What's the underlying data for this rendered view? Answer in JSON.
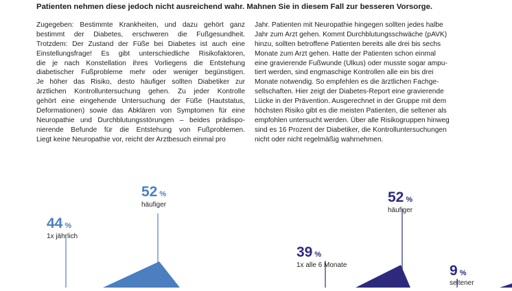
{
  "lead": "Patienten nehmen diese jedoch nicht ausreichend wahr. Mahnen Sie in diesem Fall zur besseren Vorsorge.",
  "left_column": [
    "Zugegeben: Bestimmte Krankheiten, und dazu gehört ganz",
    "bestimmt der Diabetes, erschweren die Fußgesundheit.",
    "Trotzdem: Der Zustand der Füße bei Diabetes ist auch eine",
    "Einstellungsfrage! Es gibt unterschiedliche Risikofaktoren,",
    "die je nach Konstellation ihres Vorliegens die Entstehung",
    "diabetischer Fußprobleme mehr oder weniger begünstigen.",
    "Je höher das Risiko, desto häufiger sollten Diabetiker zur",
    "ärztlichen Kontrolluntersuchung gehen. Zu jeder Kontrolle",
    "gehört eine eingehende Untersuchung der Füße (Hautstatus,",
    "Deformationen) sowie das Abklären von Symptomen für eine",
    "Neuropathie und Durchblutungsstörungen – beides prädispo-",
    "nierende Befunde für die Entstehung von Fußproblemen.",
    "Liegt keine Neuropathie vor, reicht der Arztbesuch einmal pro"
  ],
  "right_column": [
    "Jahr. Patienten mit Neuropathie hingegen sollten jedes halbe",
    "Jahr zum Arzt gehen. Kommt Durchblutungsschwäche (pAVK)",
    "hinzu, sollten betroffene Patienten bereits alle drei bis sechs",
    "Monate zum Arzt gehen. Hatte der Patienten schon einmal",
    "eine gravierende Fußwunde (Ulkus) oder musste sogar ampu-",
    "tiert werden, sind engmaschige Kontrollen alle ein bis drei",
    "Monate notwendig. So empfehlen es die ärztlichen Fachge-",
    "sellschaften. Hier zeigt der Diabetes-Report eine gravierende",
    "Lücke in der Prävention. Ausgerechnet in der Gruppe mit dem",
    "höchsten Risiko gibt es die meisten Patienten, die seltener als",
    "empfohlen untersucht werden. Über alle Risikogruppen hinweg",
    "sind es 16 Prozent der Diabetiker, die Kontrolluntersuchungen",
    "nicht oder nicht regelmäßig wahrnehmen."
  ],
  "chart_data": [
    {
      "type": "area",
      "series_color": "#4b7fc0",
      "points": [
        {
          "value": 44,
          "unit": "%",
          "label": "1x jährlich"
        },
        {
          "value": 52,
          "unit": "%",
          "label": "häufiger"
        }
      ]
    },
    {
      "type": "area",
      "series_color": "#2d2a7e",
      "points": [
        {
          "value": 39,
          "unit": "%",
          "label": "1x alle 6 Monate"
        },
        {
          "value": 52,
          "unit": "%",
          "label": "häufiger"
        },
        {
          "value": 9,
          "unit": "%",
          "label": "seltener"
        }
      ]
    }
  ]
}
